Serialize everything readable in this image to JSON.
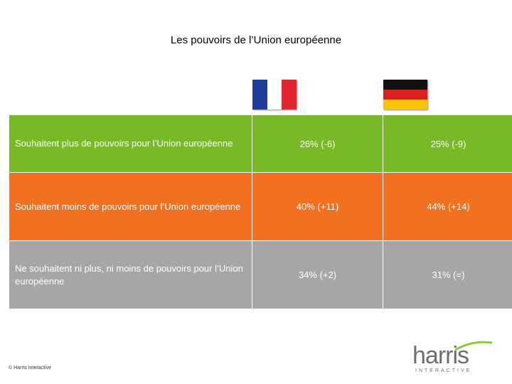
{
  "title": "Les pouvoirs de l’Union européenne",
  "flags": {
    "france": {
      "colors": [
        "#1f3c9b",
        "#ffffff",
        "#e0262e"
      ]
    },
    "germany": {
      "colors": [
        "#111111",
        "#d9201f",
        "#f6c400"
      ]
    }
  },
  "rows": [
    {
      "label": "Souhaitent plus de pouvoirs pour l’Union européenne",
      "france": "26% (-6)",
      "germany": "25% (-9)",
      "color": "#78b928"
    },
    {
      "label": "Souhaitent moins de pouvoirs pour l’Union européenne",
      "france": "40% (+11)",
      "germany": "44% (+14)",
      "color": "#f37021"
    },
    {
      "label": "Ne souhaitent ni plus, ni moins de pouvoirs pour l’Union européenne",
      "france": "34% (+2)",
      "germany": "31% (=)",
      "color": "#a6a6a6"
    }
  ],
  "footer": {
    "copyright": "© Harris Interactive",
    "logo_word": "harris",
    "logo_sub": "INTERACTIVE"
  }
}
